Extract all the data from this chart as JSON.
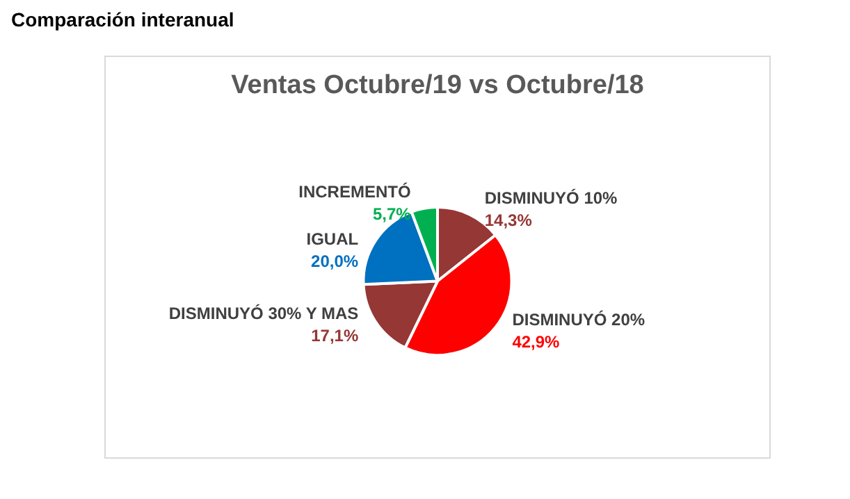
{
  "chart_data": {
    "type": "pie",
    "title": "Ventas Octubre/19 vs Octubre/18",
    "annotations": [
      "Comparación interanual"
    ],
    "categories": [
      "DISMINUYÓ 10%",
      "DISMINUYÓ 20%",
      "DISMINUYÓ 30% Y MAS",
      "IGUAL",
      "INCREMENTÓ"
    ],
    "values": [
      14.3,
      42.9,
      17.1,
      20.0,
      5.7
    ],
    "colors": [
      "#953735",
      "#ff0000",
      "#953735",
      "#0070c0",
      "#00b050"
    ],
    "value_labels": [
      "14,3%",
      "42,9%",
      "17,1%",
      "20,0%",
      "5,7%"
    ],
    "legend": false
  }
}
